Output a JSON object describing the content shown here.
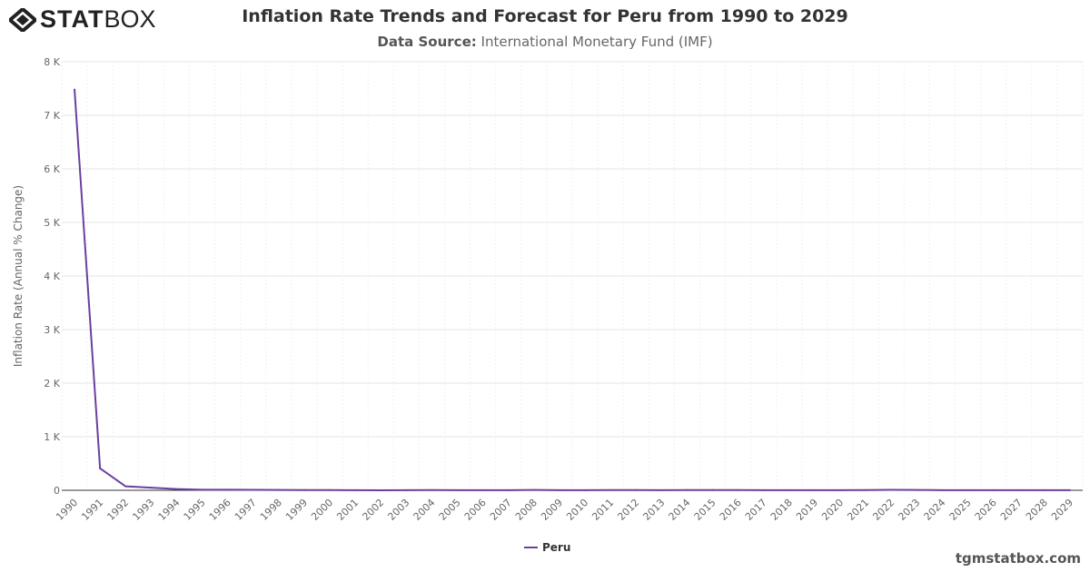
{
  "header": {
    "logo": "STATBOX",
    "title": "Inflation Rate Trends and Forecast for Peru from 1990 to 2029",
    "source_label": "Data Source:",
    "source_value": "International Monetary Fund (IMF)"
  },
  "footer": {
    "brand": "tgmstatbox.com"
  },
  "colors": {
    "series": "#6b3fa0"
  },
  "chart_data": {
    "type": "line",
    "title": "Inflation Rate Trends and Forecast for Peru from 1990 to 2029",
    "ylabel": "Inflation Rate (Annual % Change)",
    "xlabel": "",
    "ylim": [
      0,
      8000
    ],
    "yticks": [
      "0",
      "1 K",
      "2 K",
      "3 K",
      "4 K",
      "5 K",
      "6 K",
      "7 K",
      "8 K"
    ],
    "grid": true,
    "legend": "bottom",
    "categories": [
      "1990",
      "1991",
      "1992",
      "1993",
      "1994",
      "1995",
      "1996",
      "1997",
      "1998",
      "1999",
      "2000",
      "2001",
      "2002",
      "2003",
      "2004",
      "2005",
      "2006",
      "2007",
      "2008",
      "2009",
      "2010",
      "2011",
      "2012",
      "2013",
      "2014",
      "2015",
      "2016",
      "2017",
      "2018",
      "2019",
      "2020",
      "2021",
      "2022",
      "2023",
      "2024",
      "2025",
      "2026",
      "2027",
      "2028",
      "2029"
    ],
    "series": [
      {
        "name": "Peru",
        "values": [
          7481.7,
          409.5,
          73.5,
          48.6,
          23.7,
          11.1,
          11.5,
          8.5,
          7.3,
          3.5,
          3.8,
          2.0,
          0.2,
          2.3,
          3.7,
          1.6,
          2.0,
          1.8,
          5.8,
          2.9,
          1.5,
          3.4,
          3.7,
          2.8,
          3.2,
          3.5,
          3.6,
          2.8,
          1.3,
          2.1,
          1.8,
          4.0,
          7.9,
          6.3,
          2.4,
          2.0,
          2.0,
          2.0,
          2.0,
          2.0
        ]
      }
    ]
  }
}
